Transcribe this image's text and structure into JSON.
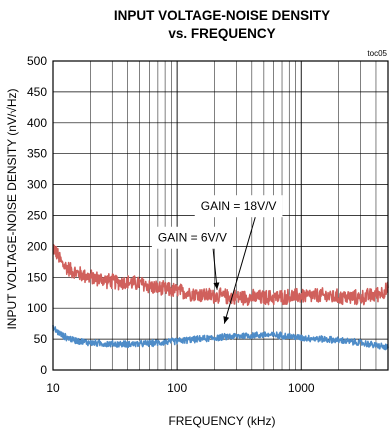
{
  "chart_data": {
    "type": "line",
    "title_lines": [
      "INPUT VOLTAGE-NOISE DENSITY",
      "vs. FREQUENCY"
    ],
    "figure_id": "toc05",
    "xlabel": "FREQUENCY (kHz)",
    "ylabel": "INPUT VOLTAGE-NOISE DENSITY (nV/√Hz)",
    "x_scale": "log",
    "xlim": [
      10,
      5000
    ],
    "ylim": [
      0,
      500
    ],
    "x_ticks": [
      10,
      100,
      1000
    ],
    "x_tick_labels": [
      "10",
      "100",
      "1000"
    ],
    "y_ticks": [
      0,
      50,
      100,
      150,
      200,
      250,
      300,
      350,
      400,
      450,
      500
    ],
    "y_tick_labels": [
      "0",
      "50",
      "100",
      "150",
      "200",
      "250",
      "300",
      "350",
      "400",
      "450",
      "500"
    ],
    "grid": true,
    "series": [
      {
        "label": "GAIN = 18V/V",
        "color": "#d0605c",
        "x": [
          10,
          12,
          15,
          20,
          30,
          50,
          70,
          100,
          150,
          200,
          300,
          500,
          700,
          1000,
          1500,
          2000,
          3000,
          4000,
          5000
        ],
        "y": [
          200,
          170,
          158,
          150,
          143,
          140,
          132,
          128,
          122,
          120,
          118,
          117,
          118,
          120,
          120,
          118,
          117,
          122,
          130
        ]
      },
      {
        "label": "GAIN = 6V/V",
        "color": "#4e8cc8",
        "x": [
          10,
          12,
          15,
          20,
          30,
          50,
          70,
          100,
          150,
          200,
          300,
          500,
          700,
          1000,
          1500,
          2000,
          3000,
          4000,
          5000
        ],
        "y": [
          68,
          55,
          48,
          44,
          42,
          42,
          44,
          47,
          50,
          52,
          55,
          57,
          56,
          52,
          50,
          48,
          44,
          40,
          36
        ]
      }
    ],
    "annotations": [
      {
        "text": "GAIN = 18V/V",
        "box": [
          155,
          265
        ],
        "arrow_to": [
          240,
          75
        ]
      },
      {
        "text": "GAIN = 6V/V",
        "box": [
          70,
          214
        ],
        "arrow_to": [
          210,
          130
        ]
      }
    ]
  }
}
